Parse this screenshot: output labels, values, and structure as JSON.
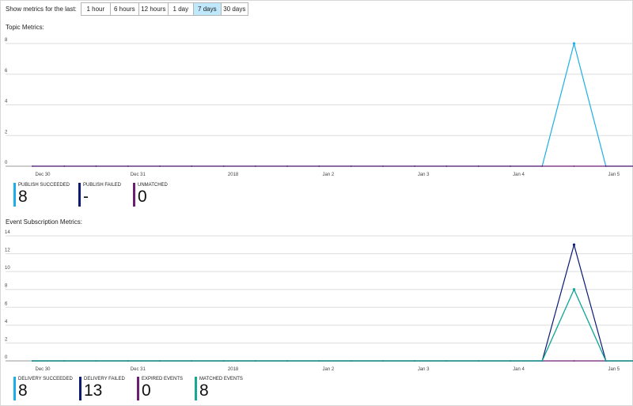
{
  "range": {
    "label": "Show metrics for the last:",
    "options": [
      {
        "label": "1 hour",
        "active": false
      },
      {
        "label": "6 hours",
        "active": false
      },
      {
        "label": "12 hours",
        "active": false
      },
      {
        "label": "1 day",
        "active": false
      },
      {
        "label": "7 days",
        "active": true
      },
      {
        "label": "30 days",
        "active": false
      }
    ]
  },
  "topic": {
    "title": "Topic Metrics:",
    "legend": [
      {
        "name": "PUBLISH SUCCEEDED",
        "value": "8",
        "color": "#1ab0e6"
      },
      {
        "name": "PUBLISH FAILED",
        "value": "-",
        "color": "#0b1b73"
      },
      {
        "name": "UNMATCHED",
        "value": "0",
        "color": "#6d1e73"
      }
    ]
  },
  "subscription": {
    "title": "Event Subscription Metrics:",
    "legend": [
      {
        "name": "DELIVERY SUCCEEDED",
        "value": "8",
        "color": "#1ab0e6"
      },
      {
        "name": "DELIVERY FAILED",
        "value": "13",
        "color": "#0b1b73"
      },
      {
        "name": "EXPIRED EVENTS",
        "value": "0",
        "color": "#6d1e73"
      },
      {
        "name": "MATCHED EVENTS",
        "value": "8",
        "color": "#17a88f"
      }
    ]
  },
  "chart_data": [
    {
      "type": "line",
      "title": "",
      "x_tick_labels": [
        "Dec 30",
        "Dec 31",
        "2018",
        "Jan 2",
        "Jan 3",
        "Jan 4",
        "Jan 5"
      ],
      "y_ticks": [
        0,
        2,
        4,
        6,
        8
      ],
      "ylim": [
        0,
        8
      ],
      "grid": true,
      "x": [
        0,
        1,
        2,
        3,
        4,
        5,
        6,
        7,
        8,
        9,
        10,
        11,
        12,
        13,
        14,
        15,
        16,
        17,
        18,
        19
      ],
      "series": [
        {
          "name": "PUBLISH SUCCEEDED",
          "color": "#1ab0e6",
          "values": [
            0,
            0,
            0,
            0,
            0,
            0,
            0,
            0,
            0,
            0,
            0,
            0,
            0,
            0,
            0,
            0,
            0,
            8,
            0,
            0
          ]
        },
        {
          "name": "UNMATCHED",
          "color": "#6d1e73",
          "values": [
            0,
            0,
            0,
            0,
            0,
            0,
            0,
            0,
            0,
            0,
            0,
            0,
            0,
            0,
            0,
            0,
            0,
            0,
            0,
            0
          ]
        }
      ]
    },
    {
      "type": "line",
      "title": "",
      "x_tick_labels": [
        "Dec 30",
        "Dec 31",
        "2018",
        "Jan 2",
        "Jan 3",
        "Jan 4",
        "Jan 5"
      ],
      "y_ticks": [
        0,
        2,
        4,
        6,
        8,
        10,
        12,
        14
      ],
      "ylim": [
        0,
        14
      ],
      "grid": true,
      "x": [
        0,
        1,
        2,
        3,
        4,
        5,
        6,
        7,
        8,
        9,
        10,
        11,
        12,
        13,
        14,
        15,
        16,
        17,
        18,
        19
      ],
      "series": [
        {
          "name": "DELIVERY SUCCEEDED",
          "color": "#1ab0e6",
          "values": [
            0,
            0,
            0,
            0,
            0,
            0,
            0,
            0,
            0,
            0,
            0,
            0,
            0,
            0,
            0,
            0,
            0,
            8,
            0,
            0
          ]
        },
        {
          "name": "DELIVERY FAILED",
          "color": "#0b1b73",
          "values": [
            0,
            0,
            0,
            0,
            0,
            0,
            0,
            0,
            0,
            0,
            0,
            0,
            0,
            0,
            0,
            0,
            0,
            13,
            0,
            0
          ]
        },
        {
          "name": "EXPIRED EVENTS",
          "color": "#6d1e73",
          "values": [
            0,
            0,
            0,
            0,
            0,
            0,
            0,
            0,
            0,
            0,
            0,
            0,
            0,
            0,
            0,
            0,
            0,
            0,
            0,
            0
          ]
        },
        {
          "name": "MATCHED EVENTS",
          "color": "#17a88f",
          "values": [
            0,
            0,
            0,
            0,
            0,
            0,
            0,
            0,
            0,
            0,
            0,
            0,
            0,
            0,
            0,
            0,
            0,
            8,
            0,
            0
          ]
        }
      ]
    }
  ]
}
